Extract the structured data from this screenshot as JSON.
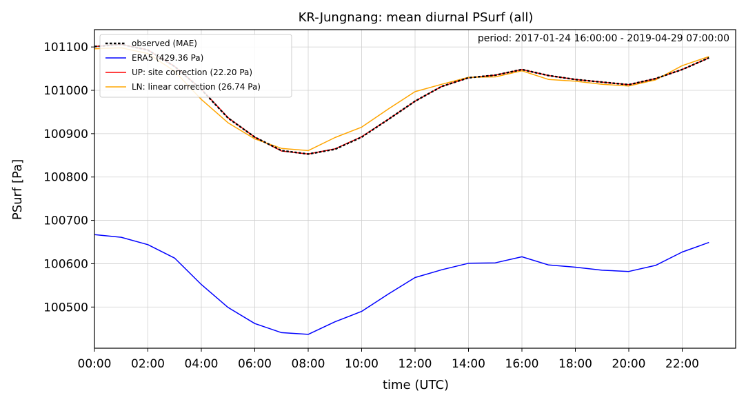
{
  "chart_data": {
    "type": "line",
    "title": "KR-Jungnang: mean diurnal PSurf (all)",
    "xlabel": "time (UTC)",
    "ylabel": "PSurf [Pa]",
    "annotation": "period: 2017-01-24 16:00:00 - 2019-04-29 07:00:00",
    "grid": true,
    "legend_position": "top-left",
    "xlim": [
      0,
      24
    ],
    "ylim": [
      100405,
      101140
    ],
    "x_ticks": [
      0,
      2,
      4,
      6,
      8,
      10,
      12,
      14,
      16,
      18,
      20,
      22
    ],
    "x_tick_labels": [
      "00:00",
      "02:00",
      "04:00",
      "06:00",
      "08:00",
      "10:00",
      "12:00",
      "14:00",
      "16:00",
      "18:00",
      "20:00",
      "22:00"
    ],
    "y_ticks": [
      100500,
      100600,
      100700,
      100800,
      100900,
      101000,
      101100
    ],
    "y_tick_labels": [
      "100500",
      "100600",
      "100700",
      "100800",
      "100900",
      "101000",
      "101100"
    ],
    "x": [
      0,
      1,
      2,
      3,
      4,
      5,
      6,
      7,
      8,
      9,
      10,
      11,
      12,
      13,
      14,
      15,
      16,
      17,
      18,
      19,
      20,
      21,
      22,
      23
    ],
    "series": [
      {
        "name": "ERA5 (429.36 Pa)",
        "color": "#0000ff",
        "style": "solid",
        "values": [
          100667,
          100661,
          100644,
          100613,
          100552,
          100499,
          100462,
          100441,
          100437,
          100466,
          100490,
          100530,
          100568,
          100586,
          100601,
          100602,
          100616,
          100597,
          100592,
          100585,
          100582,
          100596,
          100627,
          100649
        ]
      },
      {
        "name": "UP: site correction (22.20 Pa)",
        "color": "#ff0000",
        "style": "solid",
        "values": [
          101101,
          101106,
          101093,
          101055,
          101003,
          100937,
          100892,
          100860,
          100853,
          100865,
          100893,
          100933,
          100975,
          101009,
          101029,
          101035,
          101048,
          101034,
          101025,
          101019,
          101013,
          101027,
          101048,
          101075
        ]
      },
      {
        "name": "LN: linear correction (26.74 Pa)",
        "color": "#ffa500",
        "style": "solid",
        "values": [
          101096,
          101098,
          101085,
          101044,
          100979,
          100925,
          100888,
          100866,
          100861,
          100891,
          100915,
          100957,
          100997,
          101014,
          101030,
          101031,
          101045,
          101025,
          101021,
          101014,
          101010,
          101024,
          101057,
          101078
        ]
      },
      {
        "name": "observed (MAE)",
        "color": "#000000",
        "style": "dotted",
        "values": [
          101101,
          101106,
          101093,
          101055,
          101002,
          100936,
          100892,
          100861,
          100853,
          100864,
          100892,
          100933,
          100975,
          101009,
          101029,
          101035,
          101048,
          101034,
          101025,
          101019,
          101013,
          101027,
          101048,
          101075
        ]
      }
    ],
    "legend_order": [
      "observed (MAE)",
      "ERA5 (429.36 Pa)",
      "UP: site correction (22.20 Pa)",
      "LN: linear correction (26.74 Pa)"
    ]
  }
}
